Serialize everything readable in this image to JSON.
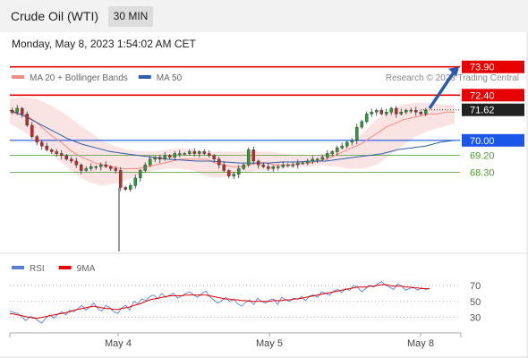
{
  "header": {
    "instrument": "Crude Oil (WTI)",
    "timeframe": "30 MIN",
    "datetime": "Monday, May 8, 2023 1:54:02 AM CET"
  },
  "chart_data": [
    {
      "type": "candlestick",
      "legend": [
        {
          "label": "MA 20 + Bollinger Bands",
          "color": "#f28b82"
        },
        {
          "label": "MA 50",
          "color": "#2b5fa8"
        }
      ],
      "credit": "Research © 2023 Trading Central",
      "x_tick_labels": [
        "May 4",
        "May 5",
        "May 8"
      ],
      "y_range": [
        64.1,
        74.6
      ],
      "levels": [
        {
          "value": 73.9,
          "label": "73.90",
          "color": "#e60000",
          "kind": "resistance"
        },
        {
          "value": 72.4,
          "label": "72.40",
          "color": "#e60000",
          "kind": "resistance"
        },
        {
          "value": 71.62,
          "label": "71.62",
          "color": "#222222",
          "kind": "last-price"
        },
        {
          "value": 70.0,
          "label": "70.00",
          "color": "#1a56e8",
          "kind": "pivot"
        },
        {
          "value": 69.2,
          "label": "69.20",
          "color": "#4c9c2e",
          "kind": "support"
        },
        {
          "value": 68.3,
          "label": "68.30",
          "color": "#4c9c2e",
          "kind": "support"
        }
      ],
      "last_price": 71.62,
      "price_path": [
        71.6,
        71.5,
        71.7,
        71.4,
        70.8,
        70.2,
        69.9,
        69.7,
        69.5,
        69.4,
        69.3,
        69.2,
        69.0,
        68.9,
        68.7,
        68.4,
        68.5,
        68.6,
        68.6,
        68.7,
        68.6,
        68.5,
        68.4,
        67.5,
        67.4,
        67.6,
        68.0,
        68.4,
        68.7,
        69.0,
        69.1,
        69.0,
        69.2,
        69.1,
        69.3,
        69.3,
        69.3,
        69.4,
        69.3,
        69.4,
        69.3,
        69.2,
        69.0,
        68.7,
        68.4,
        68.1,
        68.2,
        68.5,
        68.7,
        69.5,
        68.9,
        68.7,
        68.6,
        68.5,
        68.6,
        68.6,
        68.7,
        68.7,
        68.7,
        68.8,
        68.8,
        68.9,
        69.0,
        69.0,
        69.1,
        69.3,
        69.4,
        69.6,
        69.7,
        69.9,
        70.0,
        70.7,
        71.0,
        71.4,
        71.5,
        71.6,
        71.4,
        71.5,
        71.7,
        71.4,
        71.5,
        71.6,
        71.6,
        71.5,
        71.4,
        71.6
      ],
      "ma20": [
        71.5,
        71.4,
        71.3,
        71.0,
        70.6,
        70.2,
        69.9,
        69.5,
        69.2,
        69.0,
        68.8,
        68.7,
        68.6,
        68.5,
        68.5,
        68.5,
        68.6,
        68.7,
        68.8,
        68.9,
        69.0,
        69.0,
        69.0,
        69.0,
        68.8,
        68.7,
        68.6,
        68.6,
        68.7,
        68.8,
        68.8,
        68.7,
        68.7,
        68.7,
        68.8,
        68.8,
        68.9,
        69.0,
        69.2,
        69.4,
        69.6,
        69.8,
        70.1,
        70.4,
        70.7,
        70.9,
        71.1,
        71.2,
        71.3,
        71.4,
        71.4,
        71.5,
        71.5
      ],
      "ma50": [
        71.6,
        71.3,
        70.9,
        70.5,
        70.1,
        69.8,
        69.6,
        69.4,
        69.3,
        69.2,
        69.1,
        69.0,
        68.95,
        68.9,
        68.9,
        68.85,
        68.8,
        68.8,
        68.8,
        68.85,
        68.85,
        68.9,
        68.9,
        69.0,
        69.1,
        69.2,
        69.3,
        69.5,
        69.6,
        69.7,
        69.9,
        70.0
      ],
      "bollinger_upper": [
        72.2,
        72.3,
        72.2,
        71.9,
        71.5,
        71.0,
        70.5,
        70.0,
        69.7,
        69.5,
        69.4,
        69.4,
        69.5,
        69.6,
        69.5,
        69.4,
        69.4,
        69.4,
        69.4,
        69.4,
        69.4,
        69.3,
        69.2,
        69.2,
        69.3,
        69.5,
        69.8,
        70.4,
        71.1,
        71.6,
        71.9,
        72.0,
        72.0,
        71.9,
        71.9
      ],
      "bollinger_lower": [
        70.9,
        70.5,
        70.0,
        69.4,
        68.8,
        68.2,
        67.8,
        67.6,
        67.7,
        67.9,
        68.2,
        68.4,
        68.5,
        68.5,
        68.4,
        68.1,
        68.0,
        68.2,
        68.3,
        68.4,
        68.4,
        68.5,
        68.6,
        68.6,
        68.7,
        68.6,
        68.5,
        68.5,
        68.7,
        69.2,
        69.7,
        70.2,
        70.5,
        70.7,
        70.9
      ],
      "projection": {
        "from": 71.7,
        "to": 73.9
      }
    },
    {
      "type": "line",
      "legend": [
        {
          "label": "RSI",
          "color": "#5b7fd6"
        },
        {
          "label": "9MA",
          "color": "#e60000"
        }
      ],
      "y_tick_labels": [
        "70",
        "50",
        "30"
      ],
      "y_ticks": [
        70,
        50,
        30
      ],
      "y_range": [
        15,
        80
      ],
      "rsi": [
        38,
        36,
        35,
        31,
        26,
        31,
        30,
        26,
        23,
        29,
        33,
        29,
        34,
        37,
        33,
        39,
        37,
        41,
        45,
        39,
        43,
        48,
        41,
        38,
        45,
        42,
        37,
        35,
        42,
        45,
        39,
        50,
        47,
        53,
        51,
        56,
        58,
        53,
        60,
        55,
        58,
        60,
        54,
        57,
        60,
        62,
        58,
        55,
        60,
        63,
        56,
        52,
        48,
        51,
        55,
        50,
        53,
        47,
        44,
        49,
        52,
        46,
        54,
        50,
        48,
        52,
        53,
        46,
        55,
        52,
        50,
        54,
        53,
        56,
        51,
        57,
        58,
        55,
        62,
        60,
        58,
        63,
        65,
        61,
        66,
        64,
        70,
        68,
        62,
        66,
        70,
        68,
        72,
        75,
        70,
        68,
        65,
        72,
        69,
        64,
        66,
        68,
        64,
        67,
        65,
        66
      ],
      "ma9": [
        35,
        34,
        33,
        32,
        31,
        30,
        29,
        29,
        30,
        31,
        32,
        33,
        34,
        35,
        36,
        37,
        39,
        40,
        41,
        42,
        43,
        44,
        43,
        42,
        41,
        41,
        40,
        40,
        41,
        42,
        43,
        45,
        46,
        48,
        50,
        52,
        53,
        54,
        55,
        56,
        57,
        57,
        57,
        57,
        58,
        58,
        58,
        58,
        58,
        58,
        57,
        56,
        55,
        54,
        53,
        53,
        52,
        52,
        51,
        51,
        50,
        50,
        50,
        50,
        50,
        50,
        51,
        51,
        51,
        52,
        52,
        53,
        53,
        54,
        55,
        56,
        57,
        58,
        59,
        60,
        61,
        62,
        63,
        64,
        65,
        66,
        67,
        68,
        68,
        68,
        69,
        69,
        70,
        71,
        71,
        70,
        69,
        69,
        69,
        68,
        68,
        67,
        67,
        66,
        66,
        66
      ]
    }
  ]
}
